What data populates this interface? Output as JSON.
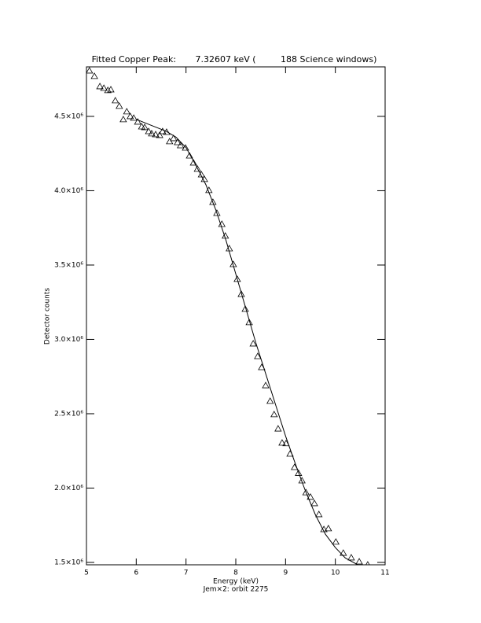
{
  "chart_data": {
    "type": "scatter",
    "title": "Fitted Copper Peak:       7.32607 keV (         188 Science windows)",
    "xlabel": "Energy (keV)",
    "subtitle": "Jem×2: orbit 2275",
    "ylabel": "Detector counts",
    "xlim": [
      5,
      11
    ],
    "xticks": [
      5,
      6,
      7,
      8,
      9,
      10,
      11
    ],
    "ylim": [
      1484000,
      4833000
    ],
    "yticks": [
      {
        "value": 1500000,
        "label": "1.5×10⁶"
      },
      {
        "value": 2000000,
        "label": "2.0×10⁶"
      },
      {
        "value": 2500000,
        "label": "2.5×10⁶"
      },
      {
        "value": 3000000,
        "label": "3.0×10⁶"
      },
      {
        "value": 3500000,
        "label": "3.5×10⁶"
      },
      {
        "value": 4000000,
        "label": "4.0×10⁶"
      },
      {
        "value": 4500000,
        "label": "4.5×10⁶"
      }
    ],
    "color": "#000000",
    "series": [
      {
        "style": "triangle",
        "x": [
          5.06,
          5.16,
          5.27,
          5.35,
          5.43,
          5.49,
          5.58,
          5.66,
          5.74,
          5.81,
          5.88,
          5.95,
          6.03,
          6.11,
          6.17,
          6.25,
          6.31,
          6.39,
          6.47,
          6.53,
          6.61,
          6.67,
          6.75,
          6.83,
          6.89,
          6.99,
          7.07,
          7.15,
          7.23,
          7.31,
          7.37,
          7.46,
          7.54,
          7.62,
          7.72,
          7.79,
          7.87,
          7.95,
          8.03,
          8.11,
          8.19,
          8.27,
          8.35,
          8.44,
          8.52,
          8.6,
          8.69,
          8.77,
          8.85,
          8.93,
          9.01,
          9.09,
          9.18,
          9.26,
          9.33,
          9.41,
          9.5,
          9.58,
          9.67,
          9.77,
          9.86,
          10.01,
          10.16,
          10.32,
          10.48,
          10.65
        ],
        "values": [
          4807000,
          4770000,
          4701000,
          4690000,
          4675000,
          4680000,
          4606000,
          4569000,
          4479000,
          4532000,
          4500000,
          4489000,
          4463000,
          4431000,
          4426000,
          4399000,
          4384000,
          4378000,
          4373000,
          4399000,
          4394000,
          4331000,
          4352000,
          4325000,
          4304000,
          4288000,
          4235000,
          4188000,
          4146000,
          4108000,
          4077000,
          4003000,
          3923000,
          3849000,
          3775000,
          3696000,
          3611000,
          3505000,
          3405000,
          3304000,
          3204000,
          3114000,
          2971000,
          2886000,
          2812000,
          2690000,
          2585000,
          2495000,
          2399000,
          2304000,
          2300000,
          2230000,
          2140000,
          2100000,
          2050000,
          1970000,
          1940000,
          1897000,
          1823000,
          1722000,
          1728000,
          1638000,
          1563000,
          1532000,
          1505000,
          1484000
        ]
      },
      {
        "style": "line",
        "x": [
          6.0,
          6.3,
          6.6,
          6.8,
          7.0,
          7.2,
          7.4,
          7.6,
          7.8,
          8.0,
          8.2,
          8.4,
          8.6,
          8.8,
          9.0,
          9.2,
          9.4,
          9.6,
          9.8,
          10.0,
          10.2,
          10.45
        ],
        "values": [
          4480000,
          4440000,
          4400000,
          4360000,
          4290000,
          4170000,
          4040000,
          3870000,
          3670000,
          3440000,
          3210000,
          2980000,
          2770000,
          2560000,
          2350000,
          2160000,
          1980000,
          1820000,
          1690000,
          1600000,
          1530000,
          1484000
        ]
      }
    ]
  }
}
